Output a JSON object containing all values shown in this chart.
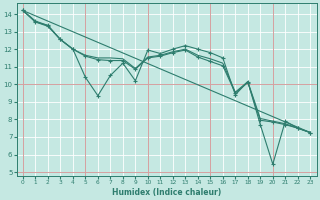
{
  "xlabel": "Humidex (Indice chaleur)",
  "xlim": [
    -0.5,
    23.5
  ],
  "ylim": [
    4.8,
    14.6
  ],
  "yticks": [
    5,
    6,
    7,
    8,
    9,
    10,
    11,
    12,
    13,
    14
  ],
  "xticks": [
    0,
    1,
    2,
    3,
    4,
    5,
    6,
    7,
    8,
    9,
    10,
    11,
    12,
    13,
    14,
    15,
    16,
    17,
    18,
    19,
    20,
    21,
    22,
    23
  ],
  "bg_color": "#c5e8e2",
  "grid_color_main": "#ffffff",
  "grid_color_red": "#d4a0a0",
  "line_color": "#2e7d6e",
  "red_x": [
    0,
    5,
    10,
    15,
    20
  ],
  "red_y": [
    5,
    10
  ],
  "lines": [
    {
      "x": [
        0,
        1,
        2,
        3,
        4,
        5,
        6,
        7,
        8,
        9,
        10,
        11,
        12,
        13,
        14,
        15,
        16,
        17,
        18,
        19,
        20,
        21,
        22,
        23
      ],
      "y": [
        14.2,
        13.6,
        13.35,
        12.55,
        12.0,
        10.4,
        9.35,
        10.5,
        11.2,
        10.2,
        11.95,
        11.75,
        12.0,
        12.2,
        12.0,
        11.8,
        11.5,
        9.4,
        10.15,
        7.7,
        5.45,
        7.9,
        7.5,
        7.25
      ],
      "marker": "+"
    },
    {
      "x": [
        0,
        1,
        2,
        3,
        4,
        5,
        6,
        7,
        8,
        9,
        10,
        11,
        12,
        13,
        14,
        15,
        16,
        17,
        18,
        19,
        20,
        21,
        22,
        23
      ],
      "y": [
        14.2,
        13.55,
        13.3,
        12.55,
        12.0,
        11.6,
        11.4,
        11.35,
        11.35,
        10.85,
        11.5,
        11.6,
        11.8,
        11.95,
        11.55,
        11.3,
        11.05,
        9.5,
        10.1,
        7.95,
        7.85,
        7.7,
        7.5,
        7.25
      ],
      "marker": "+"
    },
    {
      "x": [
        0,
        23
      ],
      "y": [
        14.2,
        7.25
      ],
      "marker": null
    },
    {
      "x": [
        0,
        1,
        2,
        3,
        4,
        5,
        6,
        7,
        8,
        9,
        10,
        11,
        12,
        13,
        14,
        15,
        16,
        17,
        18,
        19,
        20,
        21,
        22,
        23
      ],
      "y": [
        14.2,
        13.55,
        13.35,
        12.55,
        12.0,
        11.65,
        11.5,
        11.5,
        11.45,
        10.9,
        11.55,
        11.65,
        11.85,
        12.0,
        11.65,
        11.45,
        11.2,
        9.55,
        10.15,
        8.05,
        7.9,
        7.75,
        7.5,
        7.25
      ],
      "marker": null
    }
  ]
}
